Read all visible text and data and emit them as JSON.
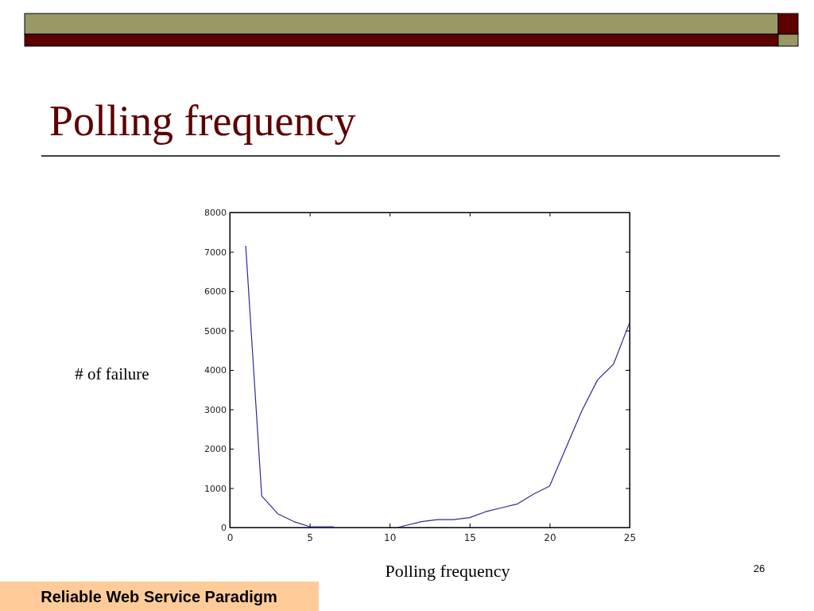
{
  "chart_data": {
    "type": "line",
    "title": "Polling frequency",
    "xlabel": "Polling frequency",
    "ylabel": "# of failure",
    "annotations": [
      "26",
      "Reliable Web Service Paradigm"
    ],
    "x": [
      1,
      2,
      3,
      4,
      5,
      6,
      6.5,
      8,
      10.5,
      11,
      12,
      13,
      14,
      15,
      16,
      17,
      18,
      19,
      20,
      21,
      22,
      23,
      24,
      25
    ],
    "series": [
      {
        "color": "#2a2a9a",
        "values": [
          7150,
          800,
          350,
          150,
          20,
          20,
          20,
          null,
          0,
          50,
          150,
          200,
          200,
          250,
          400,
          500,
          600,
          850,
          1050,
          2000,
          2950,
          3750,
          4150,
          5200
        ]
      }
    ],
    "xlim": [
      0,
      25
    ],
    "xticks": [
      0,
      5,
      10,
      15,
      20,
      25
    ],
    "ylim": [
      0,
      8000
    ],
    "yticks": [
      0,
      1000,
      2000,
      3000,
      4000,
      5000,
      6000,
      7000,
      8000
    ],
    "marker": "none",
    "line_style": "solid"
  }
}
